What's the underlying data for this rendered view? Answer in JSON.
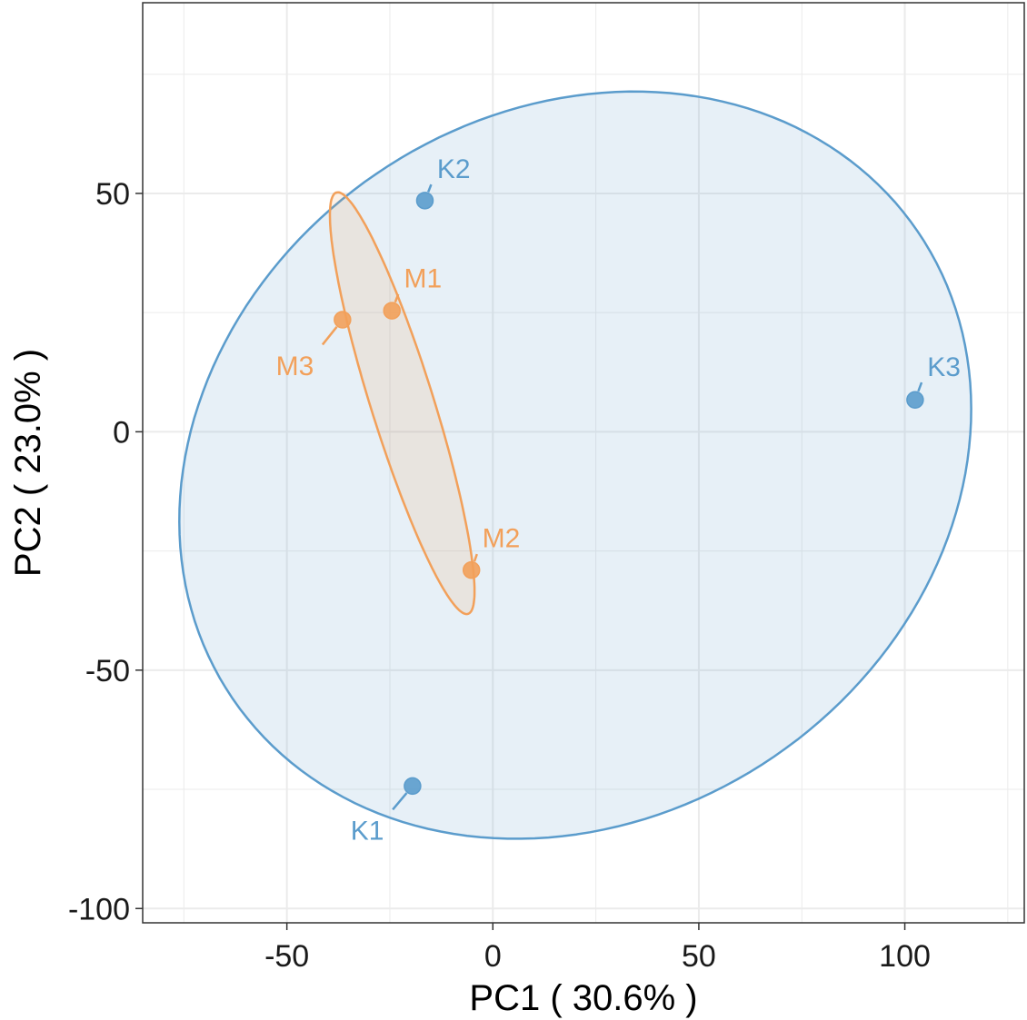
{
  "chart_data": {
    "type": "scatter",
    "title": "",
    "xlabel": "PC1 ( 30.6% )",
    "ylabel": "PC2 ( 23.0% )",
    "xlim": [
      -85,
      129
    ],
    "ylim": [
      -103,
      90
    ],
    "x_ticks": [
      -50,
      0,
      50,
      100
    ],
    "y_ticks": [
      -100,
      -50,
      0,
      50
    ],
    "x_tick_labels": [
      "-50",
      "0",
      "50",
      "100"
    ],
    "y_tick_labels": [
      "-100",
      "-50",
      "0",
      "50"
    ],
    "grid": true,
    "legend": "none",
    "series": [
      {
        "color": "#5b9ccc",
        "points": [
          {
            "label": "K1",
            "x": -19.5,
            "y": -74.3,
            "label_x": -26,
            "label_y": -81
          },
          {
            "label": "K2",
            "x": -16.5,
            "y": 48.5,
            "label_x": -14,
            "label_y": 54
          },
          {
            "label": "K3",
            "x": 102.5,
            "y": 6.7,
            "label_x": 105,
            "label_y": 12.5
          }
        ],
        "ellipse": {
          "cx": 20,
          "cy": -7,
          "rx": 98,
          "ry": 76,
          "angle_deg": 18
        }
      },
      {
        "color": "#f2a05a",
        "points": [
          {
            "label": "M1",
            "x": -24.5,
            "y": 25.4,
            "label_x": -22,
            "label_y": 31
          },
          {
            "label": "M2",
            "x": -5.2,
            "y": -29,
            "label_x": -3,
            "label_y": -23.5
          },
          {
            "label": "M3",
            "x": -36.5,
            "y": 23.5,
            "label_x": -43,
            "label_y": 16.5
          }
        ],
        "ellipse": {
          "cx": -22,
          "cy": 6,
          "rx": 47,
          "ry": 7.5,
          "angle_deg": -70
        }
      }
    ]
  }
}
